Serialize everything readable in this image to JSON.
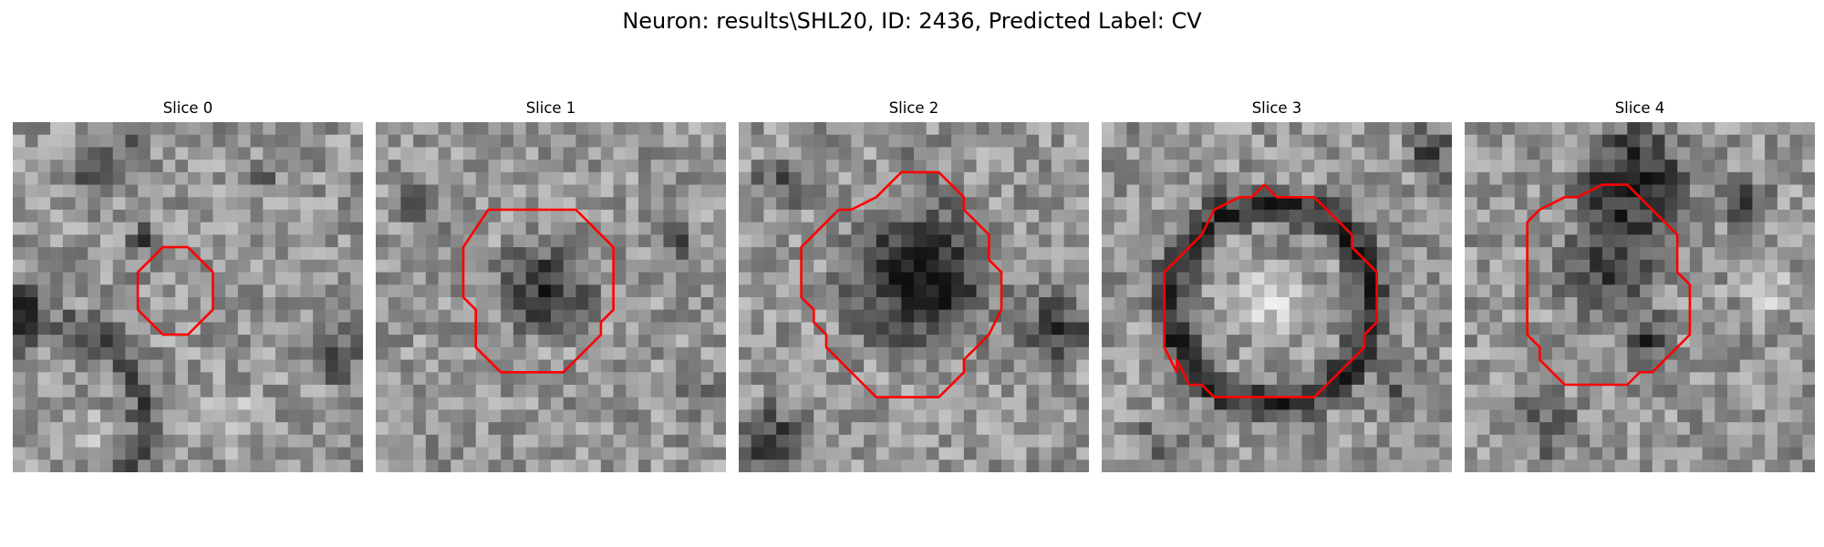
{
  "figure": {
    "title": "Neuron: results\\SHL20, ID: 2436, Predicted Label: CV"
  },
  "panels": [
    {
      "title": "Slice 0"
    },
    {
      "title": "Slice 1"
    },
    {
      "title": "Slice 2"
    },
    {
      "title": "Slice 3"
    },
    {
      "title": "Slice 4"
    }
  ],
  "colors": {
    "contour": "#ff0000",
    "background": "#ffffff"
  },
  "grid_size": 28,
  "contours": [
    [
      [
        12,
        10
      ],
      [
        14,
        10
      ],
      [
        16,
        12
      ],
      [
        16,
        15
      ],
      [
        14,
        17
      ],
      [
        12,
        17
      ],
      [
        10,
        15
      ],
      [
        10,
        12
      ]
    ],
    [
      [
        9,
        7
      ],
      [
        16,
        7
      ],
      [
        19,
        10
      ],
      [
        19,
        15
      ],
      [
        18,
        16
      ],
      [
        18,
        17
      ],
      [
        16,
        19
      ],
      [
        15,
        20
      ],
      [
        10,
        20
      ],
      [
        8,
        18
      ],
      [
        8,
        15
      ],
      [
        7,
        14
      ],
      [
        7,
        10
      ]
    ],
    [
      [
        13,
        4
      ],
      [
        14,
        4
      ],
      [
        16,
        4
      ],
      [
        18,
        6
      ],
      [
        18,
        7
      ],
      [
        20,
        9
      ],
      [
        20,
        11
      ],
      [
        21,
        12
      ],
      [
        21,
        15
      ],
      [
        20,
        17
      ],
      [
        19,
        18
      ],
      [
        18,
        19
      ],
      [
        18,
        20
      ],
      [
        16,
        22
      ],
      [
        11,
        22
      ],
      [
        9,
        20
      ],
      [
        7,
        18
      ],
      [
        7,
        17
      ],
      [
        6,
        16
      ],
      [
        6,
        15
      ],
      [
        5,
        14
      ],
      [
        5,
        10
      ],
      [
        6,
        9
      ],
      [
        8,
        7
      ],
      [
        9,
        7
      ],
      [
        11,
        6
      ],
      [
        12,
        5
      ]
    ],
    [
      [
        11,
        6
      ],
      [
        12,
        6
      ],
      [
        13,
        5
      ],
      [
        14,
        6
      ],
      [
        17,
        6
      ],
      [
        20,
        9
      ],
      [
        20,
        10
      ],
      [
        22,
        12
      ],
      [
        22,
        16
      ],
      [
        21,
        17
      ],
      [
        21,
        18
      ],
      [
        19,
        20
      ],
      [
        17,
        22
      ],
      [
        9,
        22
      ],
      [
        8,
        21
      ],
      [
        7,
        21
      ],
      [
        6,
        19
      ],
      [
        6,
        20
      ],
      [
        5,
        18
      ],
      [
        5,
        17
      ],
      [
        5,
        12
      ],
      [
        7,
        10
      ],
      [
        8,
        9
      ],
      [
        9,
        7
      ]
    ],
    [
      [
        8,
        6
      ],
      [
        9,
        6
      ],
      [
        11,
        5
      ],
      [
        13,
        5
      ],
      [
        17,
        9
      ],
      [
        17,
        12
      ],
      [
        18,
        13
      ],
      [
        18,
        17
      ],
      [
        17,
        18
      ],
      [
        16,
        19
      ],
      [
        15,
        20
      ],
      [
        14,
        20
      ],
      [
        13,
        21
      ],
      [
        8,
        21
      ],
      [
        6,
        19
      ],
      [
        6,
        18
      ],
      [
        5,
        17
      ],
      [
        5,
        8
      ],
      [
        6,
        7
      ]
    ]
  ]
}
